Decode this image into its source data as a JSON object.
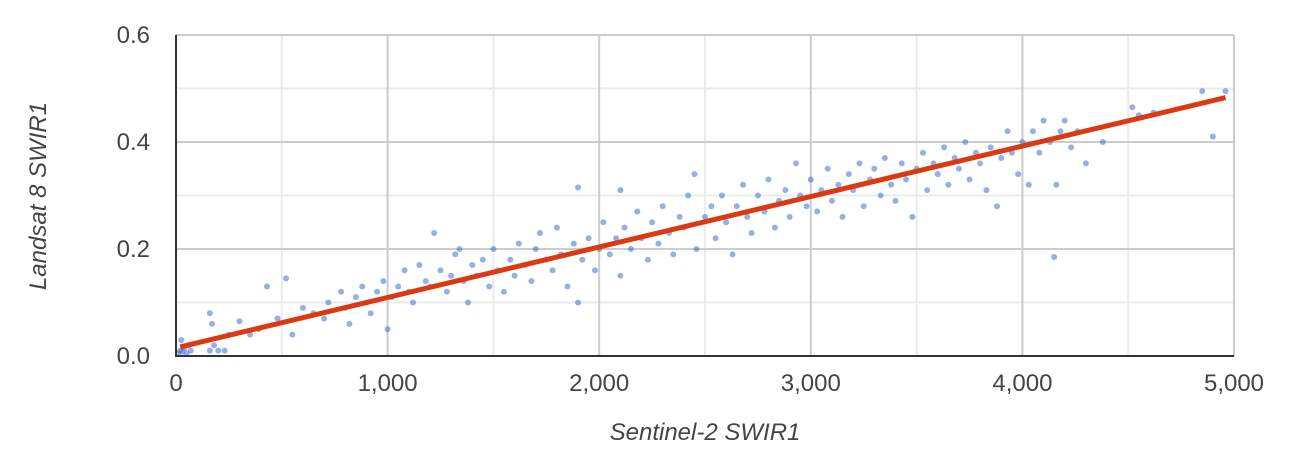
{
  "chart_data": {
    "type": "scatter",
    "title": "",
    "xlabel": "Sentinel-2 SWIR1",
    "ylabel": "Landsat 8 SWIR1",
    "xlim": [
      0,
      5000
    ],
    "ylim": [
      0,
      0.6
    ],
    "x_ticks": [
      0,
      1000,
      2000,
      3000,
      4000,
      5000
    ],
    "x_tick_labels": [
      "0",
      "1,000",
      "2,000",
      "3,000",
      "4,000",
      "5,000"
    ],
    "y_ticks": [
      0,
      0.2,
      0.4,
      0.6
    ],
    "y_tick_labels": [
      "0.0",
      "0.2",
      "0.4",
      "0.6"
    ],
    "grid": true,
    "legend": "none",
    "point_color": "#3b6fd4",
    "trendline_color": "#dc3912",
    "trendline": {
      "x": [
        20,
        4960
      ],
      "y": [
        0.017,
        0.483
      ]
    },
    "points": [
      [
        10,
        0.005
      ],
      [
        20,
        0.01
      ],
      [
        30,
        0.008
      ],
      [
        40,
        0.015
      ],
      [
        50,
        0.005
      ],
      [
        60,
        0.02
      ],
      [
        25,
        0.03
      ],
      [
        70,
        0.01
      ],
      [
        160,
        0.01
      ],
      [
        200,
        0.01
      ],
      [
        180,
        0.02
      ],
      [
        230,
        0.01
      ],
      [
        160,
        0.08
      ],
      [
        170,
        0.06
      ],
      [
        250,
        0.04
      ],
      [
        300,
        0.065
      ],
      [
        430,
        0.13
      ],
      [
        520,
        0.145
      ],
      [
        350,
        0.04
      ],
      [
        390,
        0.05
      ],
      [
        480,
        0.07
      ],
      [
        550,
        0.04
      ],
      [
        600,
        0.09
      ],
      [
        650,
        0.08
      ],
      [
        700,
        0.07
      ],
      [
        720,
        0.1
      ],
      [
        780,
        0.12
      ],
      [
        800,
        0.09
      ],
      [
        820,
        0.06
      ],
      [
        850,
        0.11
      ],
      [
        880,
        0.13
      ],
      [
        900,
        0.1
      ],
      [
        920,
        0.08
      ],
      [
        950,
        0.12
      ],
      [
        980,
        0.14
      ],
      [
        1000,
        0.05
      ],
      [
        1020,
        0.11
      ],
      [
        1050,
        0.13
      ],
      [
        1080,
        0.16
      ],
      [
        1100,
        0.12
      ],
      [
        1120,
        0.1
      ],
      [
        1150,
        0.17
      ],
      [
        1180,
        0.14
      ],
      [
        1200,
        0.13
      ],
      [
        1220,
        0.23
      ],
      [
        1250,
        0.16
      ],
      [
        1280,
        0.12
      ],
      [
        1300,
        0.15
      ],
      [
        1320,
        0.19
      ],
      [
        1340,
        0.2
      ],
      [
        1360,
        0.14
      ],
      [
        1380,
        0.1
      ],
      [
        1400,
        0.17
      ],
      [
        1420,
        0.15
      ],
      [
        1450,
        0.18
      ],
      [
        1480,
        0.13
      ],
      [
        1500,
        0.2
      ],
      [
        1520,
        0.16
      ],
      [
        1550,
        0.12
      ],
      [
        1580,
        0.18
      ],
      [
        1600,
        0.15
      ],
      [
        1620,
        0.21
      ],
      [
        1650,
        0.17
      ],
      [
        1680,
        0.14
      ],
      [
        1700,
        0.2
      ],
      [
        1720,
        0.23
      ],
      [
        1750,
        0.18
      ],
      [
        1780,
        0.16
      ],
      [
        1800,
        0.24
      ],
      [
        1820,
        0.19
      ],
      [
        1850,
        0.13
      ],
      [
        1880,
        0.21
      ],
      [
        1900,
        0.315
      ],
      [
        1900,
        0.1
      ],
      [
        1920,
        0.18
      ],
      [
        1950,
        0.22
      ],
      [
        1980,
        0.16
      ],
      [
        2000,
        0.2
      ],
      [
        2020,
        0.25
      ],
      [
        2050,
        0.19
      ],
      [
        2080,
        0.22
      ],
      [
        2100,
        0.31
      ],
      [
        2100,
        0.15
      ],
      [
        2120,
        0.24
      ],
      [
        2150,
        0.2
      ],
      [
        2180,
        0.27
      ],
      [
        2200,
        0.22
      ],
      [
        2230,
        0.18
      ],
      [
        2250,
        0.25
      ],
      [
        2280,
        0.21
      ],
      [
        2300,
        0.28
      ],
      [
        2330,
        0.23
      ],
      [
        2350,
        0.19
      ],
      [
        2380,
        0.26
      ],
      [
        2400,
        0.24
      ],
      [
        2420,
        0.3
      ],
      [
        2450,
        0.34
      ],
      [
        2460,
        0.2
      ],
      [
        2500,
        0.26
      ],
      [
        2530,
        0.28
      ],
      [
        2550,
        0.22
      ],
      [
        2580,
        0.3
      ],
      [
        2600,
        0.25
      ],
      [
        2630,
        0.19
      ],
      [
        2650,
        0.28
      ],
      [
        2680,
        0.32
      ],
      [
        2700,
        0.26
      ],
      [
        2720,
        0.23
      ],
      [
        2750,
        0.3
      ],
      [
        2780,
        0.27
      ],
      [
        2800,
        0.33
      ],
      [
        2830,
        0.24
      ],
      [
        2850,
        0.29
      ],
      [
        2880,
        0.31
      ],
      [
        2900,
        0.26
      ],
      [
        2930,
        0.36
      ],
      [
        2950,
        0.3
      ],
      [
        2980,
        0.28
      ],
      [
        3000,
        0.33
      ],
      [
        3030,
        0.27
      ],
      [
        3050,
        0.31
      ],
      [
        3080,
        0.35
      ],
      [
        3100,
        0.29
      ],
      [
        3130,
        0.32
      ],
      [
        3150,
        0.26
      ],
      [
        3180,
        0.34
      ],
      [
        3200,
        0.31
      ],
      [
        3230,
        0.36
      ],
      [
        3250,
        0.28
      ],
      [
        3280,
        0.33
      ],
      [
        3300,
        0.35
      ],
      [
        3330,
        0.3
      ],
      [
        3350,
        0.37
      ],
      [
        3380,
        0.32
      ],
      [
        3400,
        0.29
      ],
      [
        3430,
        0.36
      ],
      [
        3450,
        0.33
      ],
      [
        3480,
        0.26
      ],
      [
        3500,
        0.35
      ],
      [
        3530,
        0.38
      ],
      [
        3550,
        0.31
      ],
      [
        3580,
        0.36
      ],
      [
        3600,
        0.34
      ],
      [
        3630,
        0.39
      ],
      [
        3650,
        0.32
      ],
      [
        3680,
        0.37
      ],
      [
        3700,
        0.35
      ],
      [
        3730,
        0.4
      ],
      [
        3750,
        0.33
      ],
      [
        3780,
        0.38
      ],
      [
        3800,
        0.36
      ],
      [
        3830,
        0.31
      ],
      [
        3850,
        0.39
      ],
      [
        3880,
        0.28
      ],
      [
        3900,
        0.37
      ],
      [
        3930,
        0.42
      ],
      [
        3950,
        0.38
      ],
      [
        3980,
        0.34
      ],
      [
        4000,
        0.4
      ],
      [
        4030,
        0.32
      ],
      [
        4050,
        0.42
      ],
      [
        4080,
        0.38
      ],
      [
        4100,
        0.44
      ],
      [
        4130,
        0.4
      ],
      [
        4150,
        0.185
      ],
      [
        4160,
        0.32
      ],
      [
        4180,
        0.42
      ],
      [
        4200,
        0.44
      ],
      [
        4230,
        0.39
      ],
      [
        4260,
        0.42
      ],
      [
        4300,
        0.36
      ],
      [
        4380,
        0.4
      ],
      [
        4520,
        0.465
      ],
      [
        4550,
        0.45
      ],
      [
        4620,
        0.455
      ],
      [
        4850,
        0.495
      ],
      [
        4900,
        0.41
      ],
      [
        4960,
        0.495
      ]
    ]
  }
}
